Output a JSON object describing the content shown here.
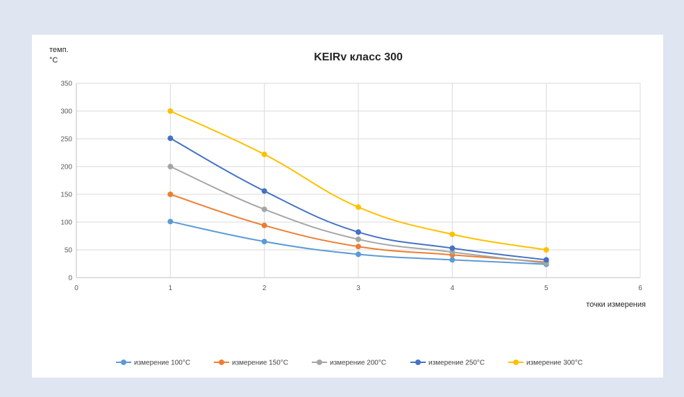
{
  "chart_data": {
    "type": "line",
    "title": "KEIRv класс 300",
    "ylabel_line1": "темп.",
    "ylabel_line2": "°C",
    "xlabel": "точки измерения",
    "xlim": [
      0,
      6
    ],
    "ylim": [
      0,
      350
    ],
    "xticks": [
      0,
      1,
      2,
      3,
      4,
      5,
      6
    ],
    "yticks": [
      0,
      50,
      100,
      150,
      200,
      250,
      300,
      350
    ],
    "grid": true,
    "legend_position": "bottom",
    "x": [
      1,
      2,
      3,
      4,
      5
    ],
    "series": [
      {
        "name": "измерение 100°C",
        "color": "#5b9bd5",
        "values": [
          101,
          65,
          42,
          32,
          24
        ]
      },
      {
        "name": "измерение 150°C",
        "color": "#ed7d31",
        "values": [
          150,
          94,
          56,
          41,
          28
        ]
      },
      {
        "name": "измерение 200°C",
        "color": "#a5a5a5",
        "values": [
          200,
          123,
          69,
          46,
          26
        ]
      },
      {
        "name": "измерение 250°C",
        "color": "#4472c4",
        "values": [
          251,
          156,
          82,
          53,
          32
        ]
      },
      {
        "name": "измерение 300°C",
        "color": "#ffc000",
        "values": [
          300,
          222,
          127,
          78,
          50
        ]
      }
    ]
  }
}
